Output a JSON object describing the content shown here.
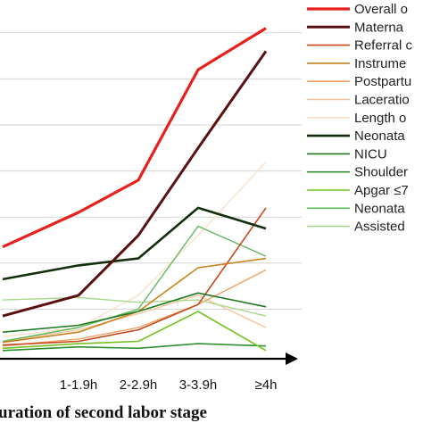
{
  "chart_data": {
    "type": "line",
    "xlabel": "uration of second labor stage",
    "categories": [
      "",
      "1-1.9h",
      "2-2.9h",
      "3-3.9h",
      "≥4h"
    ],
    "grid": true,
    "legend_position": "right",
    "series": [
      {
        "name": "Overall o",
        "color": "#e8201c",
        "width": 3.2,
        "values": [
          2.35,
          3.1,
          3.8,
          6.2,
          7.1
        ]
      },
      {
        "name": "Materna",
        "color": "#5a1010",
        "width": 3.0,
        "values": [
          0.85,
          1.3,
          2.6,
          4.5,
          6.6
        ]
      },
      {
        "name": "Referral c",
        "color": "#c8471c",
        "width": 1.6,
        "values": [
          0.22,
          0.3,
          0.55,
          1.1,
          3.2
        ]
      },
      {
        "name": "Instrume",
        "color": "#c8811c",
        "width": 1.6,
        "values": [
          0.28,
          0.5,
          0.95,
          1.9,
          2.1
        ]
      },
      {
        "name": "Postpartu",
        "color": "#f0a060",
        "width": 1.4,
        "values": [
          0.2,
          0.35,
          0.6,
          1.1,
          1.85
        ]
      },
      {
        "name": "Laceratio",
        "color": "#f6c39a",
        "width": 1.3,
        "values": [
          0.3,
          0.55,
          0.9,
          1.3,
          0.6
        ]
      },
      {
        "name": "Length o",
        "color": "#fbe0c4",
        "width": 1.3,
        "values": [
          0.4,
          0.6,
          1.3,
          2.6,
          4.2
        ]
      },
      {
        "name": "Neonata",
        "color": "#122e0c",
        "width": 2.6,
        "values": [
          1.65,
          1.95,
          2.1,
          3.2,
          2.75
        ]
      },
      {
        "name": "NICU",
        "color": "#1f7a1f",
        "width": 1.6,
        "values": [
          0.5,
          0.65,
          0.95,
          1.35,
          1.05
        ]
      },
      {
        "name": "Shoulder",
        "color": "#2f8f2f",
        "width": 1.6,
        "values": [
          0.1,
          0.18,
          0.15,
          0.25,
          0.2
        ]
      },
      {
        "name": "Apgar ≤7",
        "color": "#74c21f",
        "width": 1.6,
        "values": [
          0.15,
          0.25,
          0.3,
          0.95,
          0.1
        ]
      },
      {
        "name": "Neonata",
        "color": "#5fb85f",
        "width": 1.4,
        "values": [
          0.3,
          0.6,
          1.0,
          2.8,
          2.15
        ]
      },
      {
        "name": "Assisted",
        "color": "#a8d88a",
        "width": 1.4,
        "values": [
          1.2,
          1.25,
          1.15,
          1.2,
          0.85
        ]
      }
    ]
  }
}
